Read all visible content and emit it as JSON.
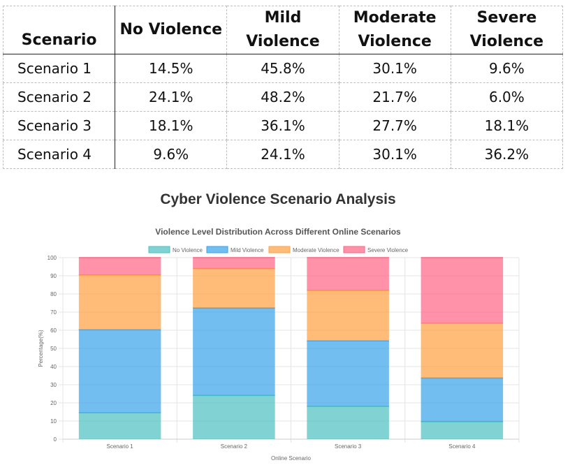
{
  "table": {
    "headers": [
      "Scenario",
      "No Violence",
      "Mild Violence",
      "Moderate Violence",
      "Severe Violence"
    ],
    "rows": [
      [
        "Scenario 1",
        "14.5%",
        "45.8%",
        "30.1%",
        "9.6%"
      ],
      [
        "Scenario 2",
        "24.1%",
        "48.2%",
        "21.7%",
        "6.0%"
      ],
      [
        "Scenario 3",
        "18.1%",
        "36.1%",
        "27.7%",
        "18.1%"
      ],
      [
        "Scenario 4",
        "9.6%",
        "24.1%",
        "30.1%",
        "36.2%"
      ]
    ]
  },
  "page_title": "Cyber Violence Scenario Analysis",
  "chart_data": {
    "type": "bar",
    "stacked": true,
    "title": "Violence Level Distribution Across Different Online Scenarios",
    "xlabel": "Online Scenario",
    "ylabel": "Percentage(%)",
    "ylim": [
      0,
      100
    ],
    "yticks": [
      0,
      10,
      20,
      30,
      40,
      50,
      60,
      70,
      80,
      90,
      100
    ],
    "grid": true,
    "legend_position": "top",
    "categories": [
      "Scenario 1",
      "Scenario 2",
      "Scenario 3",
      "Scenario 4"
    ],
    "series": [
      {
        "name": "No Violence",
        "color": "#4bc0c0",
        "values": [
          14.5,
          24.1,
          18.1,
          9.6
        ]
      },
      {
        "name": "Mild Violence",
        "color": "#36a2eb",
        "values": [
          45.8,
          48.2,
          36.1,
          24.1
        ]
      },
      {
        "name": "Moderate Violence",
        "color": "#ff9f40",
        "values": [
          30.1,
          21.7,
          27.7,
          30.1
        ]
      },
      {
        "name": "Severe Violence",
        "color": "#ff6384",
        "values": [
          9.6,
          6.0,
          18.1,
          36.2
        ]
      }
    ]
  }
}
